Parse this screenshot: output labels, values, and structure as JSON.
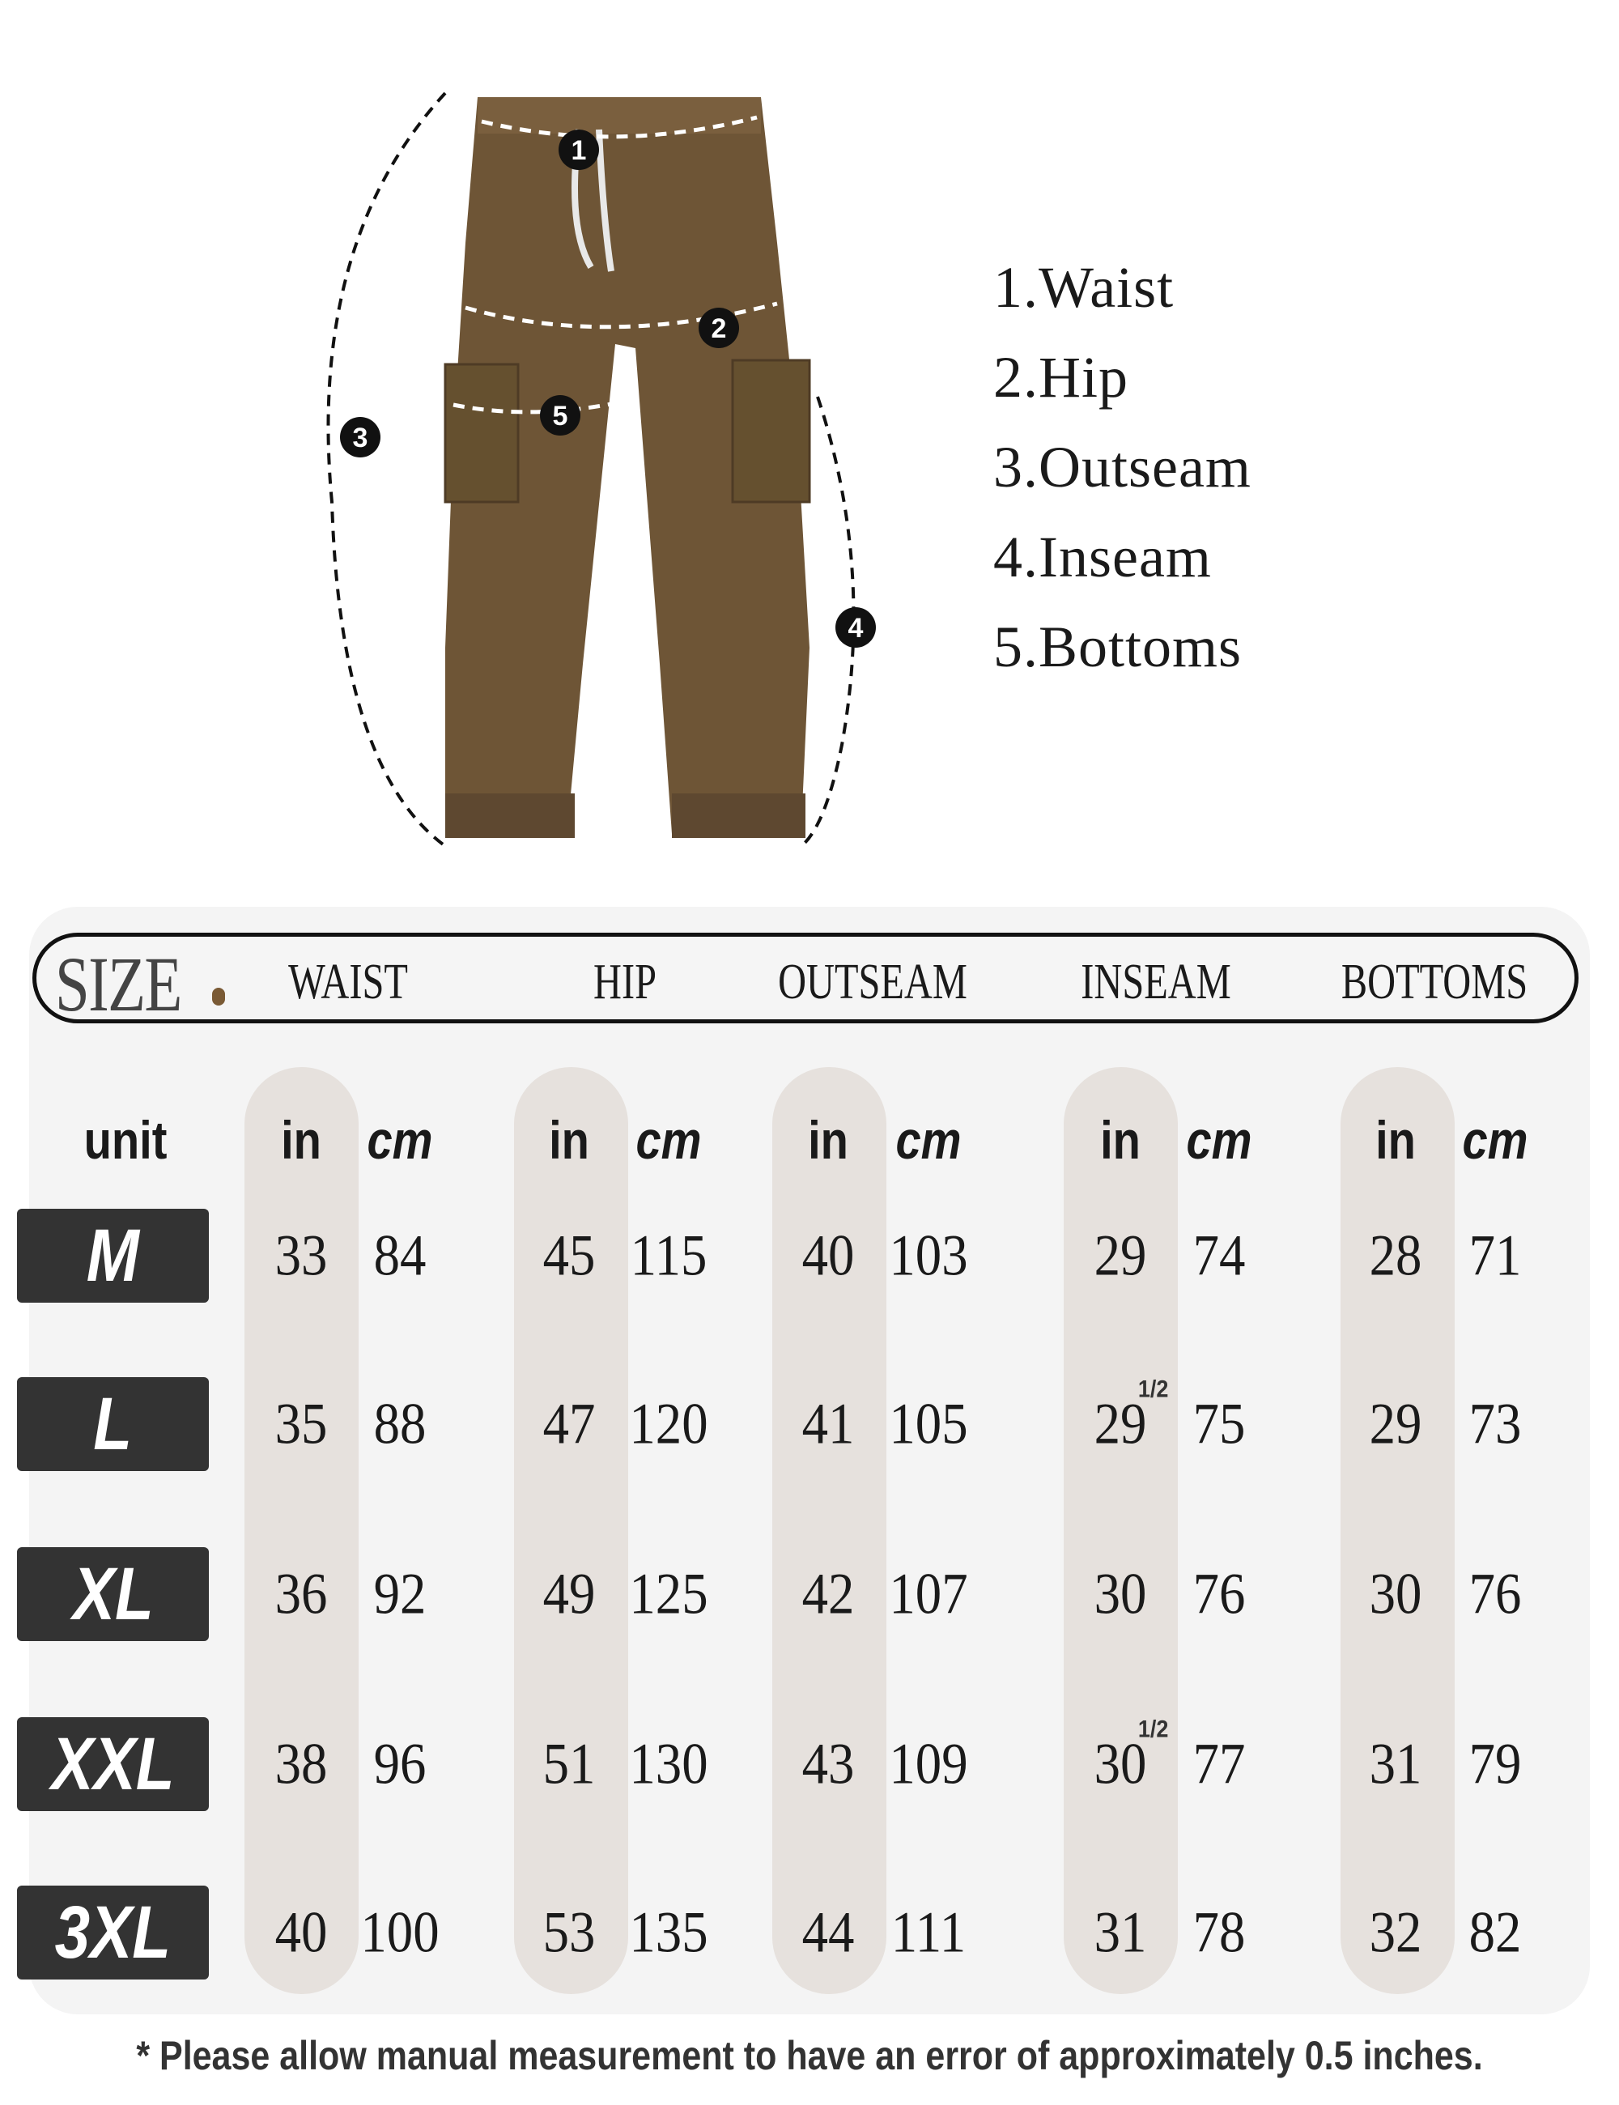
{
  "legend": [
    "1.Waist",
    "2.Hip",
    "3.Outseam",
    "4.Inseam",
    "5.Bottoms"
  ],
  "markers": [
    "1",
    "2",
    "3",
    "4",
    "5"
  ],
  "table": {
    "size_word": "SIZE",
    "headers": [
      "WAIST",
      "HIP",
      "OUTSEAM",
      "INSEAM",
      "BOTTOMS"
    ],
    "unit_label": "unit",
    "unit_in": "in",
    "unit_cm": "cm",
    "rows": [
      {
        "size": "M",
        "values": [
          [
            "33",
            "84"
          ],
          [
            "45",
            "115"
          ],
          [
            "40",
            "103"
          ],
          [
            "29",
            "74"
          ],
          [
            "28",
            "71"
          ]
        ],
        "inseam_half": ""
      },
      {
        "size": "L",
        "values": [
          [
            "35",
            "88"
          ],
          [
            "47",
            "120"
          ],
          [
            "41",
            "105"
          ],
          [
            "29",
            "75"
          ],
          [
            "29",
            "73"
          ]
        ],
        "inseam_half": "1/2"
      },
      {
        "size": "XL",
        "values": [
          [
            "36",
            "92"
          ],
          [
            "49",
            "125"
          ],
          [
            "42",
            "107"
          ],
          [
            "30",
            "76"
          ],
          [
            "30",
            "76"
          ]
        ],
        "inseam_half": ""
      },
      {
        "size": "XXL",
        "values": [
          [
            "38",
            "96"
          ],
          [
            "51",
            "130"
          ],
          [
            "43",
            "109"
          ],
          [
            "30",
            "77"
          ],
          [
            "31",
            "79"
          ]
        ],
        "inseam_half": "1/2"
      },
      {
        "size": "3XL",
        "values": [
          [
            "40",
            "100"
          ],
          [
            "53",
            "135"
          ],
          [
            "44",
            "111"
          ],
          [
            "31",
            "78"
          ],
          [
            "32",
            "82"
          ]
        ],
        "inseam_half": ""
      }
    ]
  },
  "footnote": "*  Please allow manual measurement to have an error of approximately 0.5 inches.",
  "colors": {
    "pants": "#6e5536",
    "stripe": "#e6e1dd",
    "panel": "#f4f4f4",
    "size_badge": "#333333",
    "accent_dot": "#7a5a35"
  }
}
